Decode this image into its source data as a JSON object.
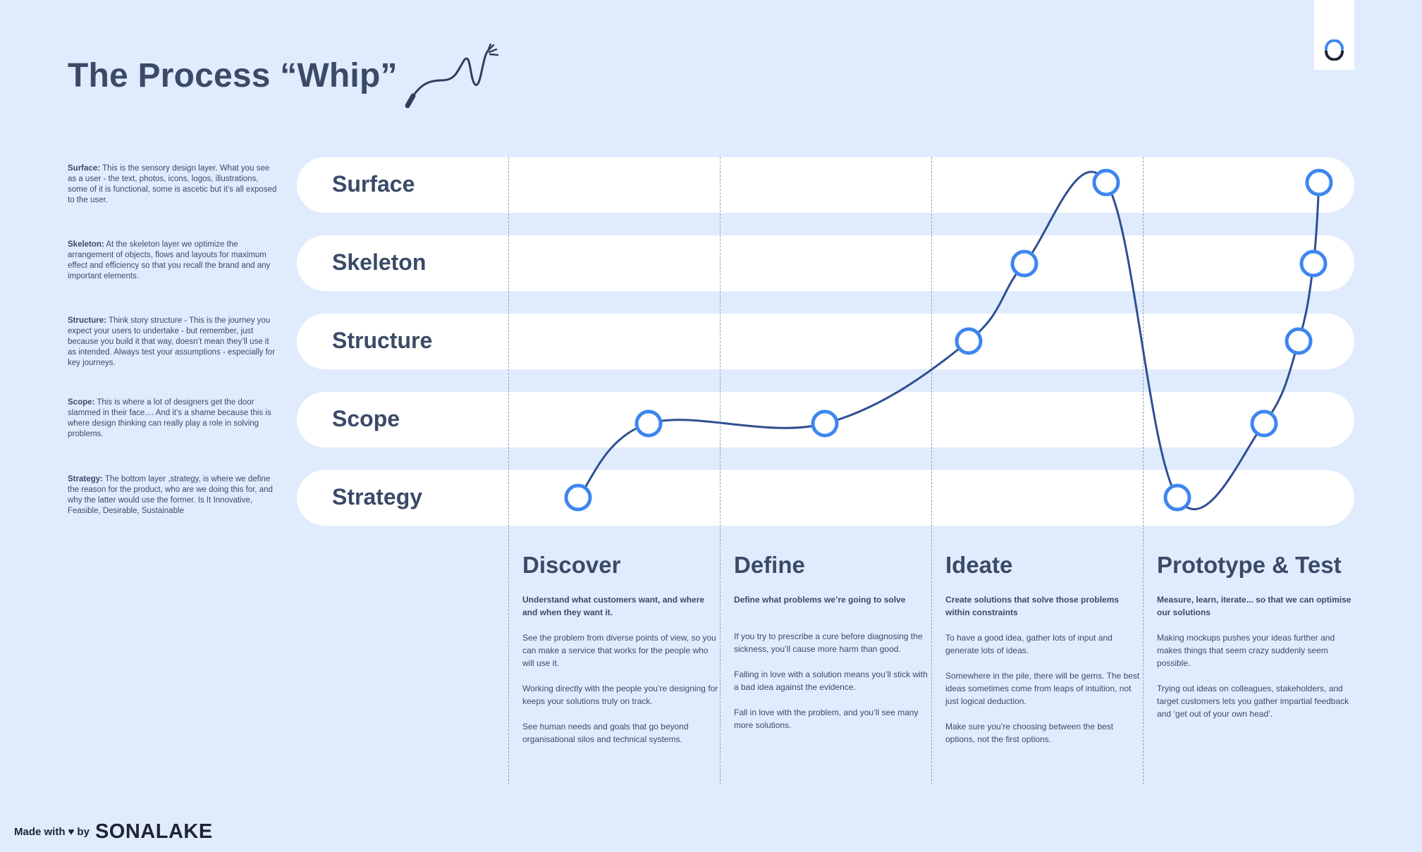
{
  "title": "The Process “Whip”",
  "layer_notes": [
    {
      "term": "Surface:",
      "text": " This is the sensory design layer. What you see as a user - the text, photos, icons, logos, illustrations, some of it is functional, some is ascetic but it’s all exposed to the user."
    },
    {
      "term": "Skeleton:",
      "text": " At the skeleton layer we optimize the arrangement of objects, flows and layouts for maximum effect and efficiency so that you recall the brand and any important elements."
    },
    {
      "term": "Structure:",
      "text": " Think story structure - This is the journey you expect your users to undertake - but remember, just because you build it that way, doesn’t mean they’ll use it as intended. Always test your assumptions - especially for key journeys."
    },
    {
      "term": "Scope:",
      "text": " This is where a lot of designers get the door slammed in their face.... And it’s a shame because this is where design thinking can really play a role in solving problems."
    },
    {
      "term": "Strategy:",
      "text": " The bottom layer ,strategy, is where we define the reason for the product, who are we doing this for, and why the latter would use the former. Is It Innovative, Feasible, Desirable, Sustainable"
    }
  ],
  "layers": [
    "Surface",
    "Skeleton",
    "Structure",
    "Scope",
    "Strategy"
  ],
  "phases": [
    {
      "title": "Discover",
      "lead": "Understand what customers want, and where and when they want it.",
      "paragraphs": [
        "See the problem from diverse points of view, so you can make a service that works for the people who will use it.",
        "Working directly with the people you’re designing for keeps your solutions truly on track.",
        "See human needs and goals that go beyond organisational silos and technical systems."
      ]
    },
    {
      "title": "Define",
      "lead": "Define what problems we’re going to solve",
      "paragraphs": [
        "If you try to prescribe a cure before diagnosing the sickness, you’ll cause more harm than good.",
        "Falling in love with a solution means you’ll stick with a bad idea against the evidence.",
        "Fall in love with the problem, and you’ll see many more solutions."
      ]
    },
    {
      "title": "Ideate",
      "lead": "Create solutions that solve those problems within constraints",
      "paragraphs": [
        "To have a good idea, gather lots of input and generate lots of ideas.",
        "Somewhere in the pile, there will be gems. The best ideas sometimes come from leaps of intuition, not just logical deduction.",
        "Make sure you’re choosing between the best options, not the first options."
      ]
    },
    {
      "title": "Prototype & Test",
      "lead": "Measure, learn, iterate... so that we can optimise our solutions",
      "paragraphs": [
        "Making mockups pushes your ideas further and makes things that seem crazy suddenly seem possible.",
        "Trying out ideas on colleagues, stakeholders, and target customers lets you gather impartial feedback and ‘get out of your own head’."
      ]
    }
  ],
  "footer": {
    "made_with": "Made with",
    "heart": "♥",
    "by": "by",
    "logo": "SONALAKE"
  },
  "chart_data": {
    "type": "line",
    "title": "",
    "y_levels": [
      "Strategy",
      "Scope",
      "Structure",
      "Skeleton",
      "Surface"
    ],
    "x_phases": [
      "Discover",
      "Define",
      "Ideate",
      "Prototype & Test"
    ],
    "points": [
      {
        "phase": "Discover",
        "level": "Strategy"
      },
      {
        "phase": "Discover",
        "level": "Scope"
      },
      {
        "phase": "Define",
        "level": "Scope"
      },
      {
        "phase": "Ideate",
        "level": "Structure"
      },
      {
        "phase": "Ideate",
        "level": "Skeleton"
      },
      {
        "phase": "Ideate",
        "level": "Surface"
      },
      {
        "phase": "Prototype & Test",
        "level": "Strategy"
      },
      {
        "phase": "Prototype & Test",
        "level": "Scope"
      },
      {
        "phase": "Prototype & Test",
        "level": "Structure"
      },
      {
        "phase": "Prototype & Test",
        "level": "Skeleton"
      },
      {
        "phase": "Prototype & Test",
        "level": "Surface"
      }
    ],
    "colors": {
      "line": "#2f4f93",
      "marker": "#3d86f0",
      "marker_fill": "#ffffff"
    }
  }
}
